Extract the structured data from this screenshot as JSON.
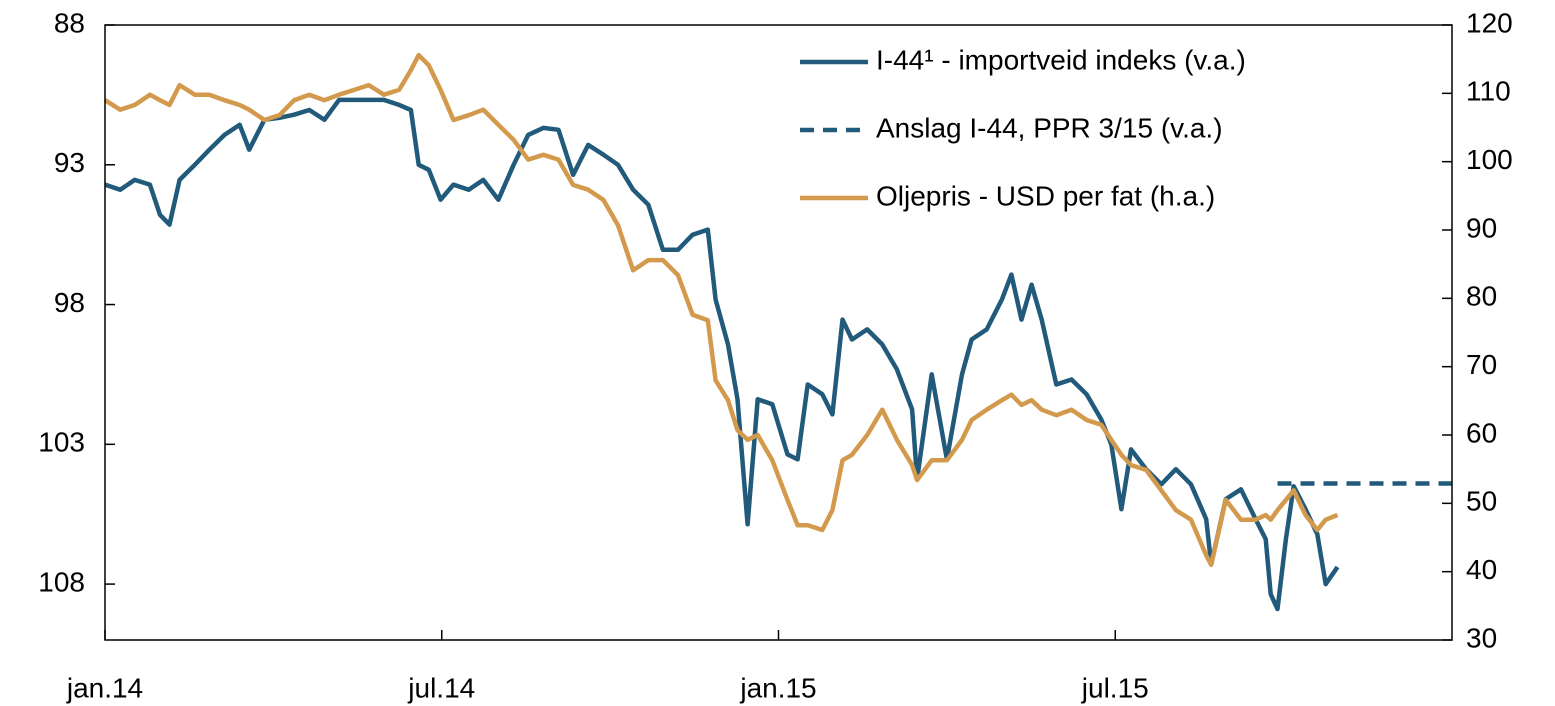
{
  "chart_data": {
    "type": "line",
    "xlim": [
      0,
      24
    ],
    "xticks": [
      {
        "value": 0,
        "label": "jan.14"
      },
      {
        "value": 6,
        "label": "jul.14"
      },
      {
        "value": 12,
        "label": "jan.15"
      },
      {
        "value": 18,
        "label": "jul.15"
      }
    ],
    "ylim": [
      88,
      110
    ],
    "y_inverted": true,
    "yticks": [
      88,
      93,
      98,
      103,
      108
    ],
    "y2lim": [
      30,
      120
    ],
    "y2ticks": [
      30,
      40,
      50,
      60,
      70,
      80,
      90,
      100,
      110,
      120
    ],
    "legend": "upper right",
    "x": [
      0,
      0.27,
      0.53,
      0.8,
      0.98,
      1.15,
      1.33,
      1.6,
      1.86,
      2.13,
      2.4,
      2.57,
      2.84,
      3.11,
      3.37,
      3.64,
      3.91,
      4.17,
      4.44,
      4.7,
      4.97,
      5.24,
      5.45,
      5.59,
      5.77,
      5.98,
      6.21,
      6.48,
      6.74,
      7.01,
      7.28,
      7.54,
      7.81,
      8.08,
      8.34,
      8.61,
      8.88,
      9.14,
      9.41,
      9.68,
      9.94,
      10.21,
      10.47,
      10.74,
      10.88,
      11.1,
      11.27,
      11.45,
      11.63,
      11.89,
      12.16,
      12.34,
      12.52,
      12.78,
      12.96,
      13.14,
      13.31,
      13.58,
      13.85,
      14.11,
      14.38,
      14.47,
      14.73,
      15.0,
      15.27,
      15.44,
      15.71,
      15.98,
      16.15,
      16.33,
      16.51,
      16.69,
      16.95,
      17.22,
      17.49,
      17.75,
      17.93,
      18.11,
      18.28,
      18.55,
      18.82,
      19.08,
      19.35,
      19.62,
      19.71,
      19.97,
      20.24,
      20.5,
      20.68,
      20.77,
      20.89,
      21.04,
      21.18,
      21.39,
      21.6,
      21.75,
      21.96
    ],
    "series": [
      {
        "name": "I-44¹ - importveid indeks (v.a.)",
        "color": "#215a7b",
        "style": "solid",
        "values": [
          93.71,
          93.89,
          93.54,
          93.71,
          94.79,
          95.14,
          93.54,
          93.0,
          92.46,
          91.93,
          91.57,
          92.46,
          91.39,
          91.32,
          91.21,
          91.04,
          91.39,
          90.68,
          90.68,
          90.68,
          90.68,
          90.86,
          91.04,
          93.0,
          93.18,
          94.25,
          93.71,
          93.89,
          93.54,
          94.25,
          93.0,
          91.93,
          91.68,
          91.75,
          93.36,
          92.29,
          92.64,
          93.0,
          93.89,
          94.43,
          96.04,
          96.04,
          95.5,
          95.32,
          97.82,
          99.43,
          101.39,
          105.86,
          101.39,
          101.57,
          103.36,
          103.54,
          100.86,
          101.21,
          101.93,
          98.54,
          99.25,
          98.89,
          99.43,
          100.32,
          101.75,
          104.25,
          100.5,
          103.54,
          100.5,
          99.25,
          98.89,
          97.82,
          96.93,
          98.54,
          97.29,
          98.54,
          100.86,
          100.68,
          101.21,
          102.11,
          103.0,
          105.32,
          103.18,
          103.89,
          104.43,
          103.89,
          104.43,
          105.68,
          107.29,
          104.96,
          104.61,
          105.68,
          106.39,
          108.36,
          108.89,
          106.39,
          104.5,
          105.32,
          106.21,
          108.0,
          107.39
        ]
      },
      {
        "name": "Anslag I-44, PPR 3/15 (v.a.)",
        "color": "#215a7b",
        "style": "dashed",
        "x": [
          20.89,
          24
        ],
        "values": [
          104.4,
          104.4
        ]
      },
      {
        "name": "Oljepris - USD per fat (h.a.)",
        "color": "#d39a4d",
        "style": "solid",
        "axis": "y2",
        "values": [
          109.0,
          107.6,
          108.3,
          109.8,
          109.0,
          108.3,
          111.2,
          109.8,
          109.8,
          109.0,
          108.3,
          107.6,
          106.1,
          106.8,
          109.0,
          109.8,
          109.0,
          109.8,
          110.5,
          111.2,
          109.8,
          110.5,
          113.4,
          115.6,
          114.1,
          110.5,
          106.1,
          106.8,
          107.6,
          105.4,
          103.2,
          100.3,
          101.0,
          100.3,
          96.6,
          95.9,
          94.4,
          90.7,
          84.1,
          85.6,
          85.6,
          83.4,
          77.6,
          76.8,
          68.0,
          65.1,
          60.7,
          59.3,
          60.0,
          56.3,
          50.5,
          46.8,
          46.8,
          46.1,
          49.0,
          56.3,
          57.1,
          60.0,
          63.7,
          59.3,
          55.6,
          53.4,
          56.3,
          56.3,
          59.3,
          62.2,
          63.7,
          65.1,
          65.9,
          64.4,
          65.1,
          63.7,
          62.9,
          63.7,
          62.2,
          61.5,
          59.3,
          57.1,
          55.6,
          54.9,
          51.9,
          49.0,
          47.6,
          42.4,
          41.0,
          50.5,
          47.6,
          47.6,
          48.3,
          47.6,
          49.0,
          50.5,
          51.9,
          48.3,
          46.1,
          47.6,
          48.3
        ]
      }
    ]
  }
}
